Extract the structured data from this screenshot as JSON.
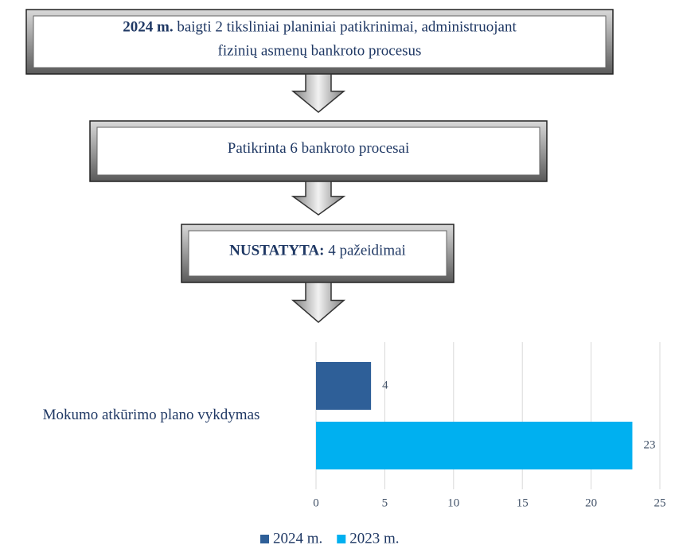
{
  "flow": {
    "boxes": [
      {
        "bold": "2024 m.",
        "lines": [
          "baigti 2 tiksliniai planiniai patikrinimai, administruojant",
          "fizinių asmenų bankroto procesus"
        ]
      },
      {
        "bold": null,
        "lines": [
          "Patikrinta 6 bankroto procesai"
        ]
      },
      {
        "bold": "NUSTATYTA:",
        "lines": [
          "4 pažeidimai"
        ]
      }
    ]
  },
  "chart_data": {
    "type": "barh",
    "categories": [
      "Mokumo atkūrimo plano vykdymas"
    ],
    "series": [
      {
        "name": "2024 m.",
        "color": "#2e5f98",
        "values": [
          4
        ]
      },
      {
        "name": "2023 m.",
        "color": "#00b0f0",
        "values": [
          23
        ]
      }
    ],
    "xlim": [
      0,
      25
    ],
    "xticks": [
      0,
      5,
      10,
      15,
      20,
      25
    ],
    "grid": true,
    "legend": "bottom"
  }
}
